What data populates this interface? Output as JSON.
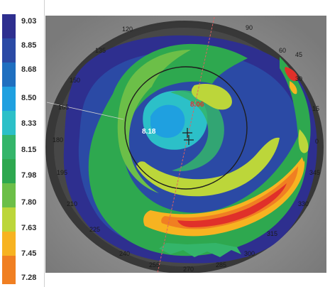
{
  "color_scale": {
    "steps": [
      {
        "value": "9.03",
        "color": "#2e2f8f"
      },
      {
        "value": "8.85",
        "color": "#2b4aa5"
      },
      {
        "value": "8.68",
        "color": "#1f6fc0"
      },
      {
        "value": "8.50",
        "color": "#1fa0e0"
      },
      {
        "value": "8.33",
        "color": "#2cc0c8"
      },
      {
        "value": "8.15",
        "color": "#34b56a"
      },
      {
        "value": "7.98",
        "color": "#2ea84f"
      },
      {
        "value": "7.80",
        "color": "#6cbf48"
      },
      {
        "value": "7.63",
        "color": "#bcd63a"
      },
      {
        "value": "7.45",
        "color": "#f7b321"
      },
      {
        "value": "7.28",
        "color": "#f07f22"
      }
    ]
  },
  "map": {
    "angles": [
      "120",
      "90",
      "60",
      "135",
      "45",
      "150",
      "30",
      "165",
      "15",
      "180",
      "0",
      "195",
      "345",
      "210",
      "330",
      "225",
      "315",
      "240",
      "300",
      "255",
      "270",
      "285"
    ],
    "value_markers": {
      "central": "8.18",
      "highlight": "8.06"
    },
    "colors": {
      "background": "#8a8a8a",
      "outer_ring": "#1e1e1e",
      "highlight_text": "#e0302a",
      "central_text": "#ffffff",
      "meridian": "#e06060"
    }
  }
}
